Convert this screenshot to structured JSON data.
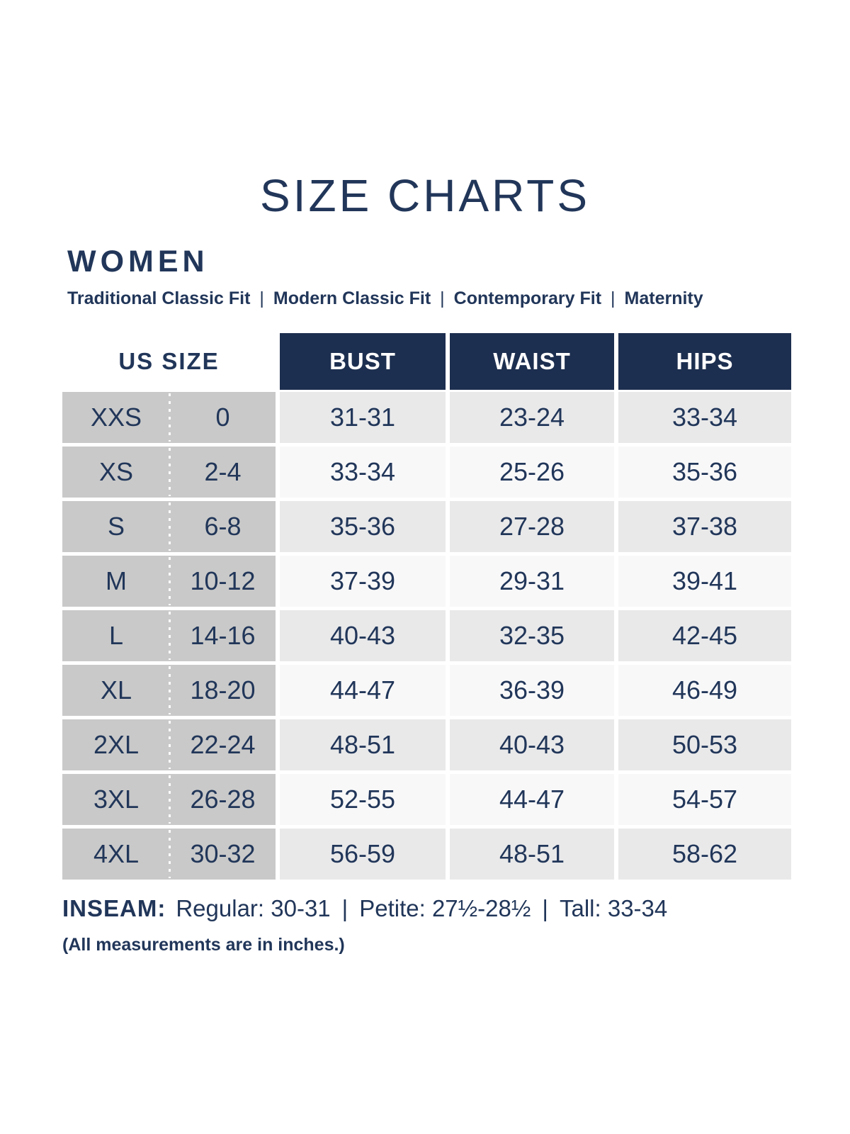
{
  "page": {
    "title": "SIZE CHARTS",
    "section": "WOMEN",
    "fit_separator": "|",
    "fit_options": [
      "Traditional Classic Fit",
      "Modern Classic Fit",
      "Contemporary Fit",
      "Maternity"
    ]
  },
  "table": {
    "us_size_header": "US SIZE",
    "measure_headers": [
      "BUST",
      "WAIST",
      "HIPS"
    ]
  },
  "chart_data": {
    "type": "table",
    "title": "SIZE CHARTS",
    "group": "WOMEN",
    "columns": [
      "SIZE",
      "US SIZE",
      "BUST",
      "WAIST",
      "HIPS"
    ],
    "units": "inches",
    "rows": [
      {
        "size": "XXS",
        "us": "0",
        "bust": "31-31",
        "waist": "23-24",
        "hips": "33-34"
      },
      {
        "size": "XS",
        "us": "2-4",
        "bust": "33-34",
        "waist": "25-26",
        "hips": "35-36"
      },
      {
        "size": "S",
        "us": "6-8",
        "bust": "35-36",
        "waist": "27-28",
        "hips": "37-38"
      },
      {
        "size": "M",
        "us": "10-12",
        "bust": "37-39",
        "waist": "29-31",
        "hips": "39-41"
      },
      {
        "size": "L",
        "us": "14-16",
        "bust": "40-43",
        "waist": "32-35",
        "hips": "42-45"
      },
      {
        "size": "XL",
        "us": "18-20",
        "bust": "44-47",
        "waist": "36-39",
        "hips": "46-49"
      },
      {
        "size": "2XL",
        "us": "22-24",
        "bust": "48-51",
        "waist": "40-43",
        "hips": "50-53"
      },
      {
        "size": "3XL",
        "us": "26-28",
        "bust": "52-55",
        "waist": "44-47",
        "hips": "54-57"
      },
      {
        "size": "4XL",
        "us": "30-32",
        "bust": "56-59",
        "waist": "48-51",
        "hips": "58-62"
      }
    ]
  },
  "inseam": {
    "label": "INSEAM:",
    "separator": "|",
    "entries": [
      "Regular: 30-31",
      "Petite: 27½-28½",
      "Tall: 33-34"
    ]
  },
  "footnote": "(All measurements are in inches.)",
  "colors": {
    "navy_block": "#1d2f50",
    "navy_text": "#213659",
    "size_column_gray": "#c9c9c9",
    "row_alternate": "#e9e9ea",
    "row_plain": "#f8f8f9"
  }
}
